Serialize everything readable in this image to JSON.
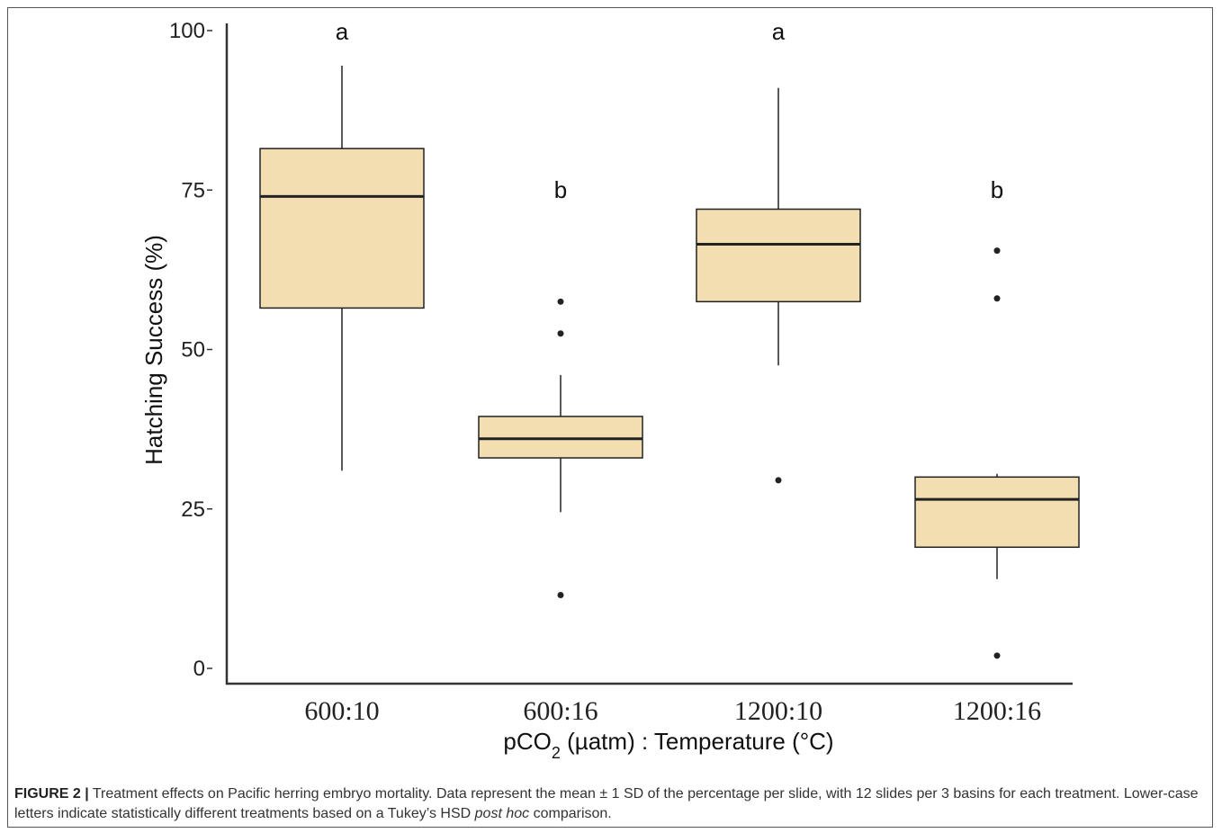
{
  "chart_data": {
    "type": "box",
    "xlabel_parts": {
      "prefix": "pCO",
      "sub": "2",
      "unit": " (µatm) : Temperature (°C)"
    },
    "ylabel": "Hatching Success (%)",
    "ylim": [
      0,
      100
    ],
    "yticks": [
      "0",
      "25",
      "50",
      "75",
      "100"
    ],
    "grid": false,
    "categories": [
      "600:10",
      "600:16",
      "1200:10",
      "1200:16"
    ],
    "boxes": [
      {
        "category": "600:10",
        "whisker_low": 31,
        "q1": 56.5,
        "median": 74,
        "q3": 81.5,
        "whisker_high": 94.5,
        "outliers": [],
        "letter": "a"
      },
      {
        "category": "600:16",
        "whisker_low": 24.5,
        "q1": 33,
        "median": 36,
        "q3": 39.5,
        "whisker_high": 46,
        "outliers": [
          11.5,
          52.5,
          57.5
        ],
        "letter": "b"
      },
      {
        "category": "1200:10",
        "whisker_low": 47.5,
        "q1": 57.5,
        "median": 66.5,
        "q3": 72,
        "whisker_high": 91,
        "outliers": [
          29.5
        ],
        "letter": "a"
      },
      {
        "category": "1200:16",
        "whisker_low": 14,
        "q1": 19,
        "median": 26.5,
        "q3": 30,
        "whisker_high": 30.5,
        "outliers": [
          2,
          58,
          65.5
        ],
        "letter": "b"
      }
    ],
    "colors": {
      "box_fill": "#f2deb1",
      "stroke": "#222222"
    }
  },
  "caption": {
    "label": "FIGURE 2 |",
    "text_1": " Treatment effects on Pacific herring embryo mortality. Data represent the mean ± 1 SD of the percentage per slide, with 12 slides per 3 basins for each treatment. Lower-case letters indicate statistically different treatments based on a Tukey’s HSD ",
    "italic": "post hoc",
    "text_2": " comparison."
  }
}
